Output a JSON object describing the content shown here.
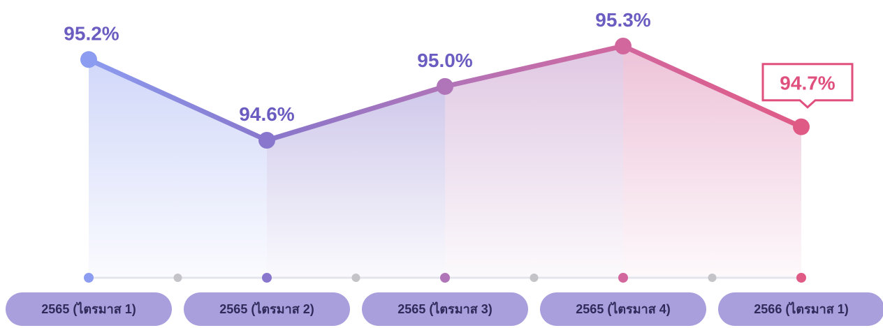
{
  "chart_data": {
    "type": "line",
    "categories": [
      "2565 (ไตรมาส 1)",
      "2565 (ไตรมาส 2)",
      "2565 (ไตรมาส 3)",
      "2565 (ไตรมาส 4)",
      "2566 (ไตรมาส 1)"
    ],
    "values": [
      95.2,
      94.6,
      95.0,
      95.3,
      94.7
    ],
    "value_labels": [
      "95.2%",
      "94.6%",
      "95.0%",
      "95.3%",
      "94.7%"
    ],
    "colors": [
      "#8c9cf0",
      "#8877cc",
      "#b074b8",
      "#d2679e",
      "#e05a86"
    ]
  }
}
